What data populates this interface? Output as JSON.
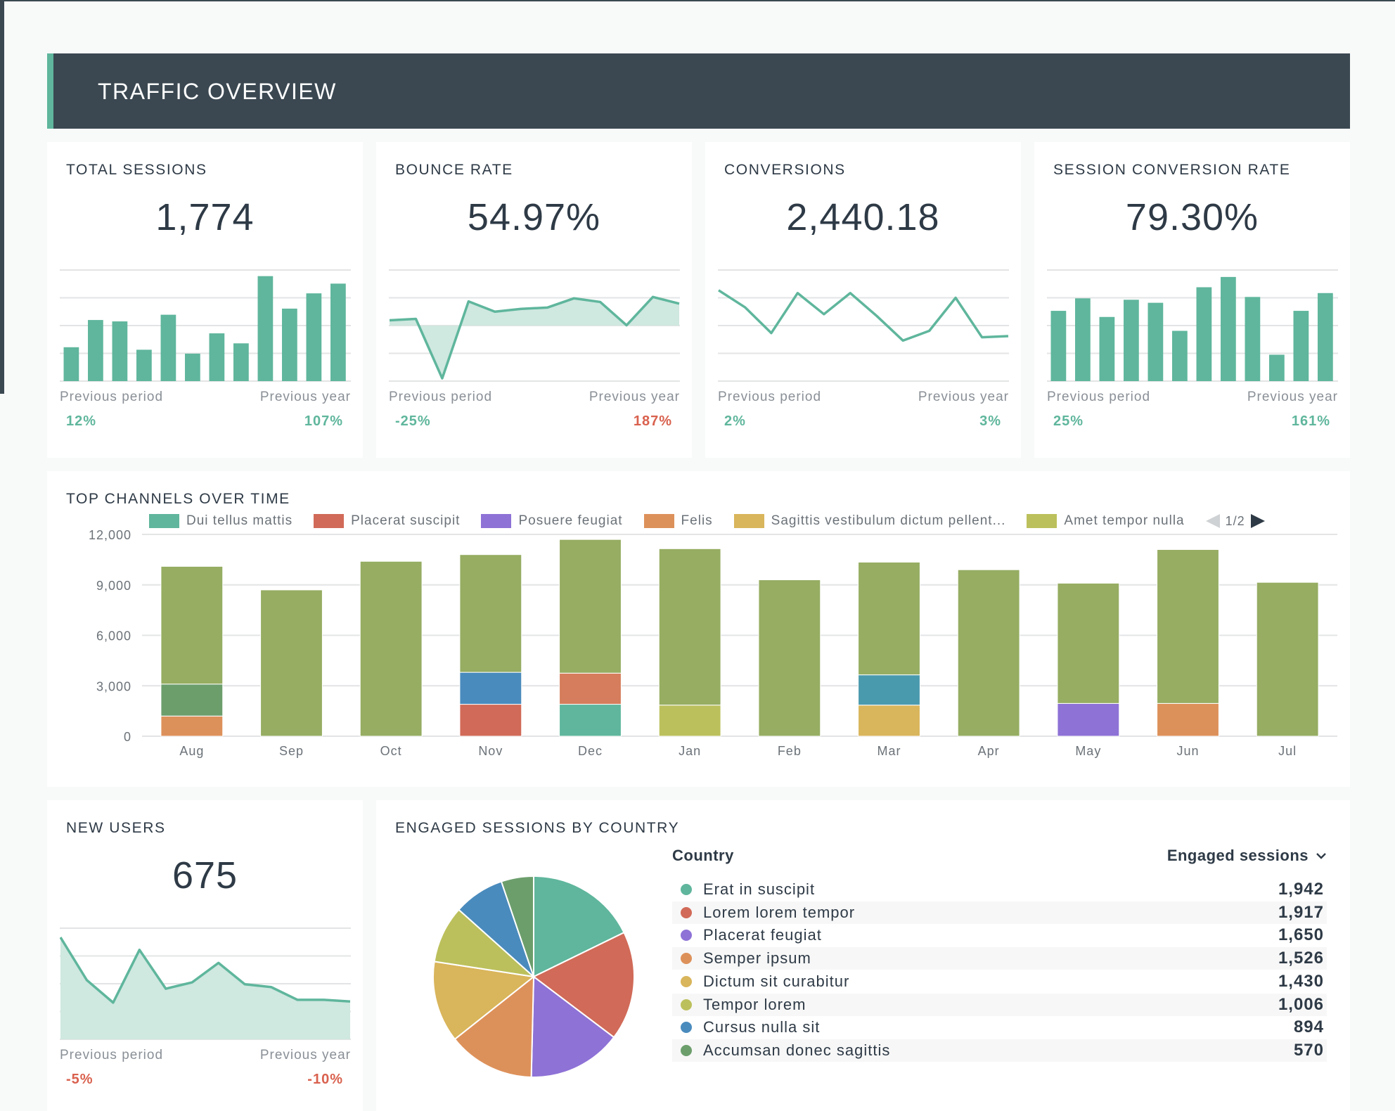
{
  "title": "TRAFFIC OVERVIEW",
  "colors": {
    "accent": "#5fb69c",
    "header_bg": "#3b4852",
    "positive": "#5fb69c",
    "negative": "#d9614e",
    "fill": "#cfe8e0"
  },
  "kpis": [
    {
      "title": "TOTAL SESSIONS",
      "value": "1,774",
      "prev_period_label": "Previous period",
      "prev_period": "12%",
      "prev_period_trend": "positive",
      "prev_year_label": "Previous year",
      "prev_year": "107%",
      "prev_year_trend": "positive",
      "sparkline": {
        "type": "bar",
        "values": [
          1.22,
          2.2,
          2.15,
          1.13,
          2.39,
          0.99,
          1.72,
          1.36,
          3.78,
          2.61,
          3.16,
          3.51
        ]
      }
    },
    {
      "title": "BOUNCE RATE",
      "value": "54.97%",
      "prev_period_label": "Previous period",
      "prev_period": "-25%",
      "prev_period_trend": "positive",
      "prev_year_label": "Previous year",
      "prev_year": "187%",
      "prev_year_trend": "negative",
      "sparkline": {
        "type": "area-baseline",
        "baseline": 2,
        "values": [
          2.19,
          2.24,
          0.1,
          2.87,
          2.5,
          2.6,
          2.65,
          2.98,
          2.85,
          2.01,
          3.03,
          2.79
        ]
      }
    },
    {
      "title": "CONVERSIONS",
      "value": "2,440.18",
      "prev_period_label": "Previous period",
      "prev_period": "2%",
      "prev_period_trend": "positive",
      "prev_year_label": "Previous year",
      "prev_year": "3%",
      "prev_year_trend": "positive",
      "sparkline": {
        "type": "line",
        "values": [
          3.27,
          2.66,
          1.73,
          3.17,
          2.41,
          3.17,
          2.35,
          1.46,
          1.81,
          3.0,
          1.58,
          1.62
        ]
      }
    },
    {
      "title": "SESSION CONVERSION RATE",
      "value": "79.30%",
      "prev_period_label": "Previous period",
      "prev_period": "25%",
      "prev_period_trend": "positive",
      "prev_year_label": "Previous year",
      "prev_year": "161%",
      "prev_year_trend": "positive",
      "sparkline": {
        "type": "bar",
        "values": [
          2.53,
          2.98,
          2.31,
          2.93,
          2.82,
          1.81,
          3.38,
          3.75,
          3.03,
          0.95,
          2.53,
          3.17
        ]
      }
    }
  ],
  "new_users": {
    "title": "NEW USERS",
    "value": "675",
    "prev_period_label": "Previous period",
    "prev_period": "-5%",
    "prev_period_trend": "negative",
    "prev_year_label": "Previous year",
    "prev_year": "-10%",
    "prev_year_trend": "negative",
    "sparkline": {
      "type": "area",
      "values": [
        3.67,
        2.13,
        1.32,
        3.22,
        1.82,
        2.05,
        2.75,
        1.98,
        1.88,
        1.42,
        1.42,
        1.36
      ]
    }
  },
  "channels": {
    "title": "TOP CHANNELS OVER TIME",
    "pager": "1/2",
    "chart_data": {
      "type": "bar",
      "stacked": true,
      "categories": [
        "Aug",
        "Sep",
        "Oct",
        "Nov",
        "Dec",
        "Jan",
        "Feb",
        "Mar",
        "Apr",
        "May",
        "Jun",
        "Jul"
      ],
      "ylim": [
        0,
        12000
      ],
      "yticks": [
        "0",
        "3,000",
        "6,000",
        "9,000",
        "12,000"
      ],
      "grid": true,
      "legend_position": "top",
      "series": [
        {
          "name": "Dui tellus mattis",
          "color": "#5fb69c",
          "values": [
            0,
            0,
            0,
            0,
            1900,
            0,
            0,
            0,
            0,
            0,
            0,
            0
          ]
        },
        {
          "name": "Placerat suscipit",
          "color": "#d16a58",
          "values": [
            0,
            0,
            0,
            1900,
            0,
            0,
            0,
            0,
            0,
            0,
            0,
            0
          ]
        },
        {
          "name": "Posuere feugiat",
          "color": "#8e72d6",
          "values": [
            0,
            0,
            0,
            0,
            0,
            0,
            0,
            0,
            0,
            1950,
            0,
            0
          ]
        },
        {
          "name": "Felis",
          "color": "#dd915a",
          "values": [
            1200,
            0,
            0,
            0,
            0,
            0,
            0,
            0,
            0,
            0,
            1950,
            0
          ]
        },
        {
          "name": "Sagittis vestibulum dictum pellent...",
          "color": "#d9b55b",
          "values": [
            0,
            0,
            0,
            0,
            0,
            0,
            0,
            1850,
            0,
            0,
            0,
            0
          ]
        },
        {
          "name": "Amet tempor nulla",
          "color": "#bcc05c",
          "values": [
            0,
            0,
            0,
            0,
            0,
            1850,
            0,
            0,
            0,
            0,
            0,
            0
          ]
        },
        {
          "color": "#6c9e6c",
          "values": [
            1900,
            0,
            0,
            0,
            0,
            0,
            0,
            0,
            0,
            0,
            0,
            0
          ]
        },
        {
          "color": "#4a8bbd",
          "values": [
            0,
            0,
            0,
            1900,
            0,
            0,
            0,
            0,
            0,
            0,
            0,
            0
          ]
        },
        {
          "color": "#d57d5c",
          "values": [
            0,
            0,
            0,
            0,
            1850,
            0,
            0,
            0,
            0,
            0,
            0,
            0
          ]
        },
        {
          "color": "#4a9aae",
          "values": [
            0,
            0,
            0,
            0,
            0,
            0,
            0,
            1800,
            0,
            0,
            0,
            0
          ]
        },
        {
          "color": "#96ad62",
          "values": [
            7000,
            8700,
            10400,
            7000,
            7950,
            9300,
            9300,
            6700,
            9900,
            7150,
            9150,
            9150
          ]
        }
      ]
    }
  },
  "country": {
    "title": "ENGAGED SESSIONS BY COUNTRY",
    "col_country": "Country",
    "col_sessions": "Engaged sessions",
    "chart_data": {
      "type": "pie",
      "labels": [
        "Erat in suscipit",
        "Lorem lorem tempor",
        "Placerat feugiat",
        "Semper ipsum",
        "Dictum sit curabitur",
        "Tempor lorem",
        "Cursus nulla sit",
        "Accumsan donec sagittis"
      ],
      "values": [
        1942,
        1917,
        1650,
        1526,
        1430,
        1006,
        894,
        570
      ],
      "display": [
        "1,942",
        "1,917",
        "1,650",
        "1,526",
        "1,430",
        "1,006",
        "894",
        "570"
      ],
      "colors": [
        "#5fb69c",
        "#d16a58",
        "#8e72d6",
        "#dd915a",
        "#d9b55b",
        "#bcc05c",
        "#4a8bbd",
        "#6c9e6c"
      ]
    }
  }
}
